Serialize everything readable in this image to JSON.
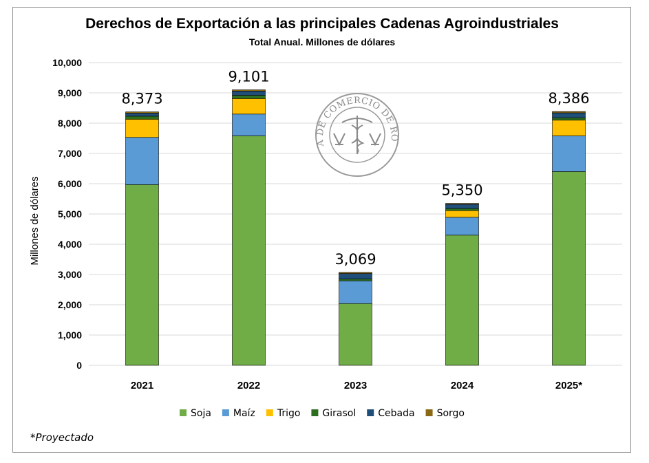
{
  "chart_data": {
    "type": "bar",
    "stacked": true,
    "title": "Derechos de Exportación a las principales Cadenas Agroindustriales",
    "subtitle": "Total Anual. Millones de dólares",
    "xlabel": "",
    "ylabel": "Millones de dólares",
    "ylim": [
      0,
      10000
    ],
    "yticks": [
      0,
      1000,
      2000,
      3000,
      4000,
      5000,
      6000,
      7000,
      8000,
      9000,
      10000
    ],
    "ytick_labels": [
      "0",
      "1,000",
      "2,000",
      "3,000",
      "4,000",
      "5,000",
      "6,000",
      "7,000",
      "8,000",
      "9,000",
      "10,000"
    ],
    "categories": [
      "2021",
      "2022",
      "2023",
      "2024",
      "2025*"
    ],
    "series": [
      {
        "name": "Soja",
        "color": "#70ad47",
        "values": [
          5970,
          7580,
          2040,
          4300,
          6400
        ]
      },
      {
        "name": "Maíz",
        "color": "#5b9bd5",
        "values": [
          1560,
          720,
          750,
          590,
          1180
        ]
      },
      {
        "name": "Trigo",
        "color": "#ffc000",
        "values": [
          600,
          510,
          0,
          220,
          520
        ]
      },
      {
        "name": "Girasol",
        "color": "#2e6e1f",
        "values": [
          100,
          110,
          60,
          70,
          80
        ]
      },
      {
        "name": "Cebada",
        "color": "#1f4e79",
        "values": [
          100,
          140,
          180,
          140,
          160
        ]
      },
      {
        "name": "Sorgo",
        "color": "#8b6914",
        "values": [
          43,
          41,
          39,
          30,
          46
        ]
      }
    ],
    "totals": [
      "8,373",
      "9,101",
      "3,069",
      "5,350",
      "8,386"
    ],
    "grid": true,
    "legend_position": "bottom",
    "footnote": "*Proyectado"
  },
  "watermark": {
    "text": "BOLSA DE COMERCIO DE ROSARIO"
  }
}
